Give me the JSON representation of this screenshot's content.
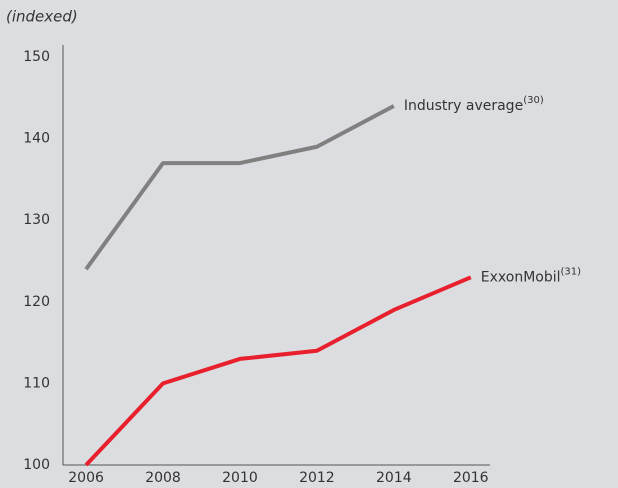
{
  "chart_data": {
    "type": "line",
    "subtitle": "(indexed)",
    "x": [
      2006,
      2008,
      2010,
      2012,
      2014,
      2016
    ],
    "series": [
      {
        "name": "Industry average",
        "superscript": "(30)",
        "color": "#808080",
        "values": [
          124,
          137,
          137,
          139,
          144,
          null
        ]
      },
      {
        "name": "ExxonMobil",
        "superscript": "(31)",
        "color": "#e8202e",
        "values": [
          100,
          110,
          113,
          114,
          119,
          123
        ]
      }
    ],
    "xlim": [
      2005.4,
      2016.5
    ],
    "xticks": [
      2006,
      2008,
      2010,
      2012,
      2014,
      2016
    ],
    "ylim": [
      100,
      150
    ],
    "yticks": [
      100,
      110,
      120,
      130,
      140,
      150
    ],
    "grid": false
  }
}
